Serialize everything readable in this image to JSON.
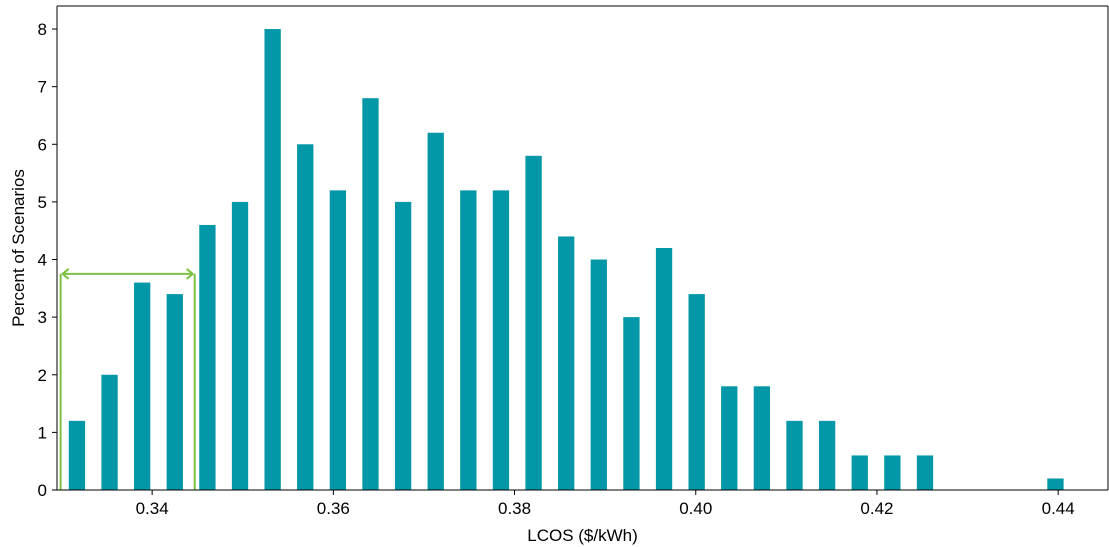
{
  "chart_data": {
    "type": "bar",
    "title": "",
    "xlabel": "LCOS ($/kWh)",
    "ylabel": "Percent of Scenarios",
    "xlim": [
      0.3295,
      0.4455
    ],
    "ylim": [
      0,
      8.4
    ],
    "xticks": [
      0.34,
      0.36,
      0.38,
      0.4,
      0.42,
      0.44
    ],
    "xtick_labels": [
      "0.34",
      "0.36",
      "0.38",
      "0.40",
      "0.42",
      "0.44"
    ],
    "yticks": [
      0,
      1,
      2,
      3,
      4,
      5,
      6,
      7,
      8
    ],
    "ytick_labels": [
      "0",
      "1",
      "2",
      "3",
      "4",
      "5",
      "6",
      "7",
      "8"
    ],
    "bin_width": 0.0018,
    "x": [
      0.3317,
      0.3353,
      0.3389,
      0.3425,
      0.3461,
      0.3497,
      0.3533,
      0.3569,
      0.3605,
      0.3641,
      0.3677,
      0.3713,
      0.3749,
      0.3785,
      0.3821,
      0.3857,
      0.3893,
      0.3929,
      0.3965,
      0.4001,
      0.4037,
      0.4073,
      0.4109,
      0.4145,
      0.4181,
      0.4217,
      0.4253,
      0.4397
    ],
    "values": [
      1.2,
      2.0,
      3.6,
      3.4,
      4.6,
      5.0,
      8.0,
      6.0,
      5.2,
      6.8,
      5.0,
      6.2,
      5.2,
      5.2,
      5.8,
      4.4,
      4.0,
      3.0,
      4.2,
      3.4,
      1.8,
      1.8,
      1.2,
      1.2,
      0.6,
      0.6,
      0.6,
      0.2
    ],
    "grid": false,
    "bar_color": "#0397a8",
    "annotation": {
      "type": "bracket-range",
      "x_start": 0.3299,
      "x_end": 0.3447,
      "y": 3.75,
      "color": "#7dc142"
    }
  }
}
